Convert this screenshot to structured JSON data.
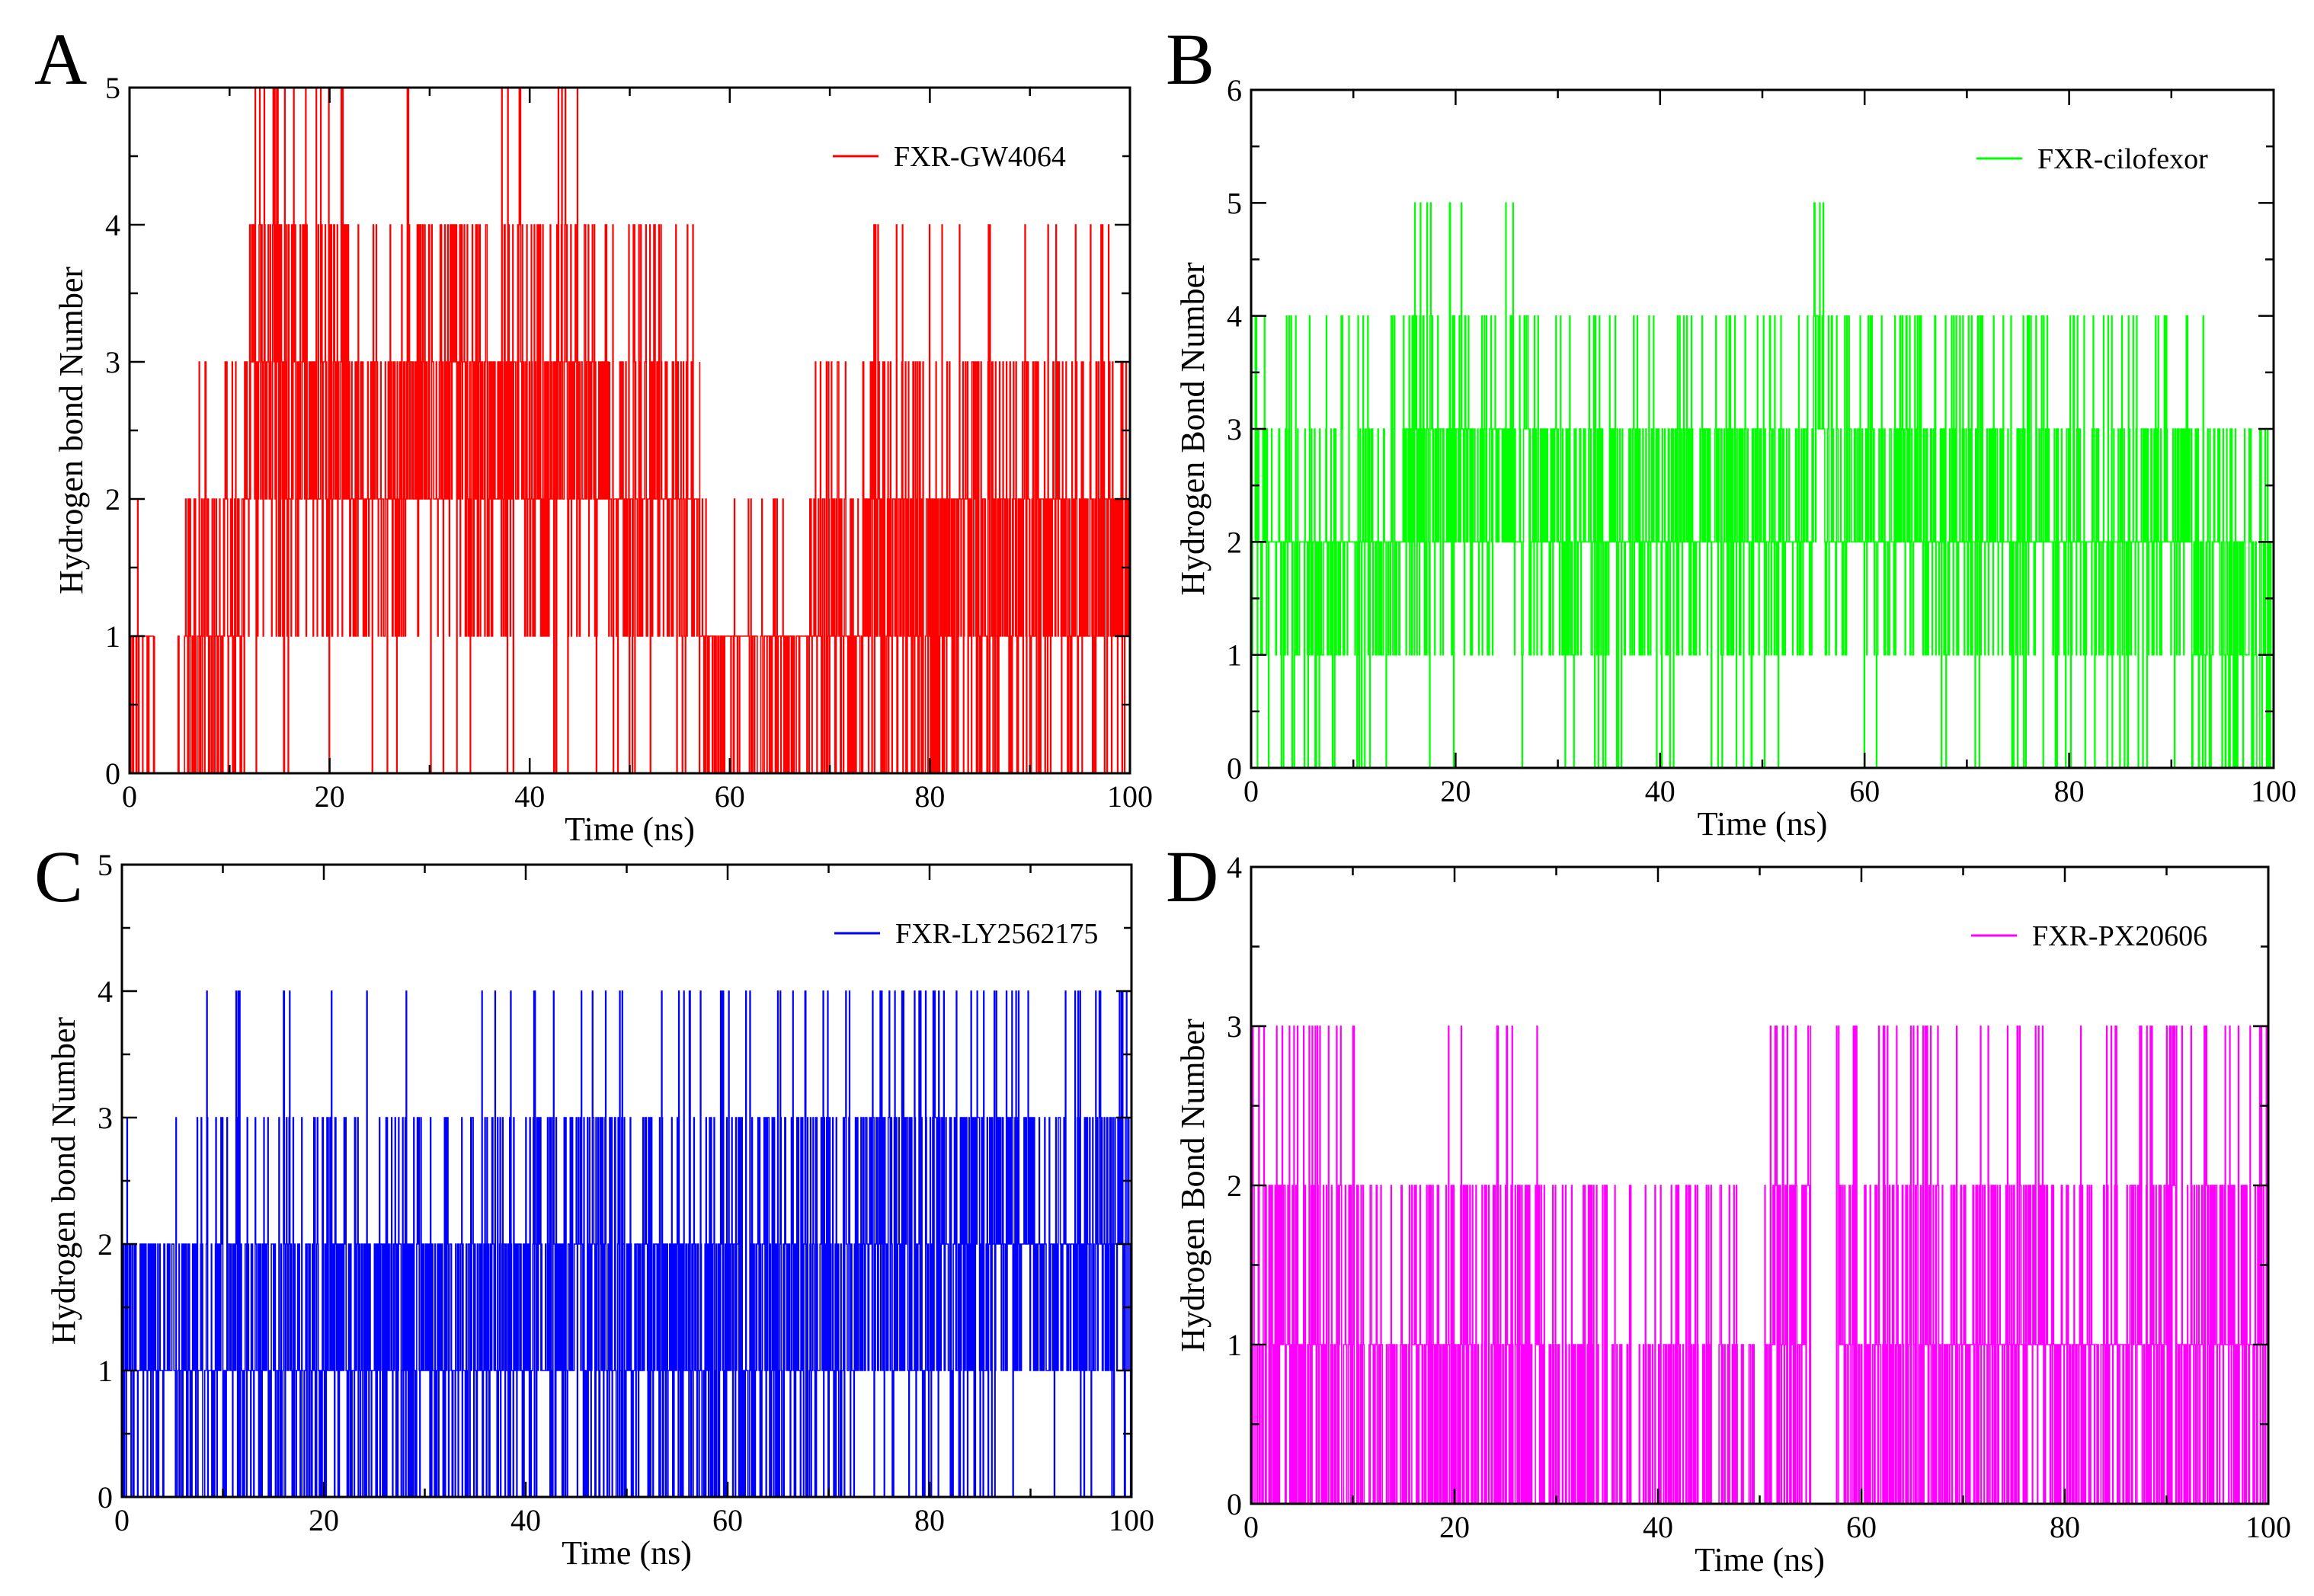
{
  "figure": {
    "panel_count": 4,
    "shared_x_label": "Time (ns)"
  },
  "chart_data": [
    {
      "panel": "A",
      "type": "line",
      "title": "",
      "xlabel": "Time (ns)",
      "ylabel": "Hydrogen bond Number",
      "xlim": [
        0,
        100
      ],
      "ylim": [
        0,
        5
      ],
      "xticks": [
        0,
        20,
        40,
        60,
        80,
        100
      ],
      "yticks": [
        0,
        1,
        2,
        3,
        4,
        5
      ],
      "legend": {
        "label": "FXR-GW4064",
        "position": "top-right"
      },
      "color": "#ff0000",
      "series": [
        {
          "name": "FXR-GW4064",
          "segments": [
            {
              "x": [
                0,
                2.5
              ],
              "base": 1,
              "p_up": 0.08,
              "p_down": 0.25,
              "maxv": 2
            },
            {
              "x": [
                2.5,
                5.5
              ],
              "base": 0,
              "p_up": 0.05,
              "p_down": 0,
              "maxv": 1
            },
            {
              "x": [
                5.5,
                10
              ],
              "base": 1,
              "p_up": 0.3,
              "p_down": 0.35,
              "maxv": 3
            },
            {
              "x": [
                10,
                12
              ],
              "base": 1,
              "p_up": 0.45,
              "p_down": 0.15,
              "maxv": 3
            },
            {
              "x": [
                12,
                22
              ],
              "base": 2.5,
              "p_up": 0.35,
              "p_down": 0.3,
              "maxv": 5
            },
            {
              "x": [
                22,
                27
              ],
              "base": 2,
              "p_up": 0.3,
              "p_down": 0.3,
              "maxv": 4
            },
            {
              "x": [
                27,
                48
              ],
              "base": 2.5,
              "p_up": 0.3,
              "p_down": 0.3,
              "maxv": 5
            },
            {
              "x": [
                48,
                57
              ],
              "base": 2,
              "p_up": 0.25,
              "p_down": 0.35,
              "maxv": 4
            },
            {
              "x": [
                57,
                68
              ],
              "base": 1,
              "p_up": 0.05,
              "p_down": 0.3,
              "maxv": 2
            },
            {
              "x": [
                68,
                74
              ],
              "base": 1,
              "p_up": 0.4,
              "p_down": 0.2,
              "maxv": 3
            },
            {
              "x": [
                74,
                90
              ],
              "base": 1.5,
              "p_up": 0.3,
              "p_down": 0.3,
              "maxv": 4
            },
            {
              "x": [
                90,
                100
              ],
              "base": 1.5,
              "p_up": 0.3,
              "p_down": 0.3,
              "maxv": 4
            }
          ]
        }
      ]
    },
    {
      "panel": "B",
      "type": "line",
      "title": "",
      "xlabel": "Time (ns)",
      "ylabel": "Hydrogen Bond Number",
      "xlim": [
        0,
        100
      ],
      "ylim": [
        0,
        6
      ],
      "xticks": [
        0,
        20,
        40,
        60,
        80,
        100
      ],
      "yticks": [
        0,
        1,
        2,
        3,
        4,
        5,
        6
      ],
      "legend": {
        "label": "FXR-cilofexor",
        "position": "top-right"
      },
      "color": "#00ff00",
      "series": [
        {
          "name": "FXR-cilofexor",
          "segments": [
            {
              "x": [
                0,
                15
              ],
              "base": 2,
              "p_up": 0.2,
              "p_down": 0.25,
              "maxv": 4
            },
            {
              "x": [
                15,
                28
              ],
              "base": 2.5,
              "p_up": 0.25,
              "p_down": 0.2,
              "maxv": 5
            },
            {
              "x": [
                28,
                55
              ],
              "base": 2,
              "p_up": 0.3,
              "p_down": 0.2,
              "maxv": 5
            },
            {
              "x": [
                55,
                56
              ],
              "base": 3,
              "p_up": 0.5,
              "p_down": 0.1,
              "maxv": 6
            },
            {
              "x": [
                56,
                92
              ],
              "base": 2,
              "p_up": 0.3,
              "p_down": 0.2,
              "maxv": 5
            },
            {
              "x": [
                92,
                100
              ],
              "base": 1.5,
              "p_up": 0.2,
              "p_down": 0.3,
              "maxv": 4
            }
          ]
        }
      ]
    },
    {
      "panel": "C",
      "type": "line",
      "title": "",
      "xlabel": "Time (ns)",
      "ylabel": "Hydrogen bond Number",
      "xlim": [
        0,
        100
      ],
      "ylim": [
        0,
        5
      ],
      "xticks": [
        0,
        20,
        40,
        60,
        80,
        100
      ],
      "yticks": [
        0,
        1,
        2,
        3,
        4,
        5
      ],
      "legend": {
        "label": "FXR-LY2562175",
        "position": "top-right"
      },
      "color": "#0000ff",
      "series": [
        {
          "name": "FXR-LY2562175",
          "segments": [
            {
              "x": [
                0,
                8
              ],
              "base": 1.5,
              "p_up": 0.05,
              "p_down": 0.4,
              "maxv": 3
            },
            {
              "x": [
                8,
                40
              ],
              "base": 1.5,
              "p_up": 0.2,
              "p_down": 0.4,
              "maxv": 4
            },
            {
              "x": [
                40,
                72
              ],
              "base": 1.5,
              "p_up": 0.3,
              "p_down": 0.35,
              "maxv": 5
            },
            {
              "x": [
                72,
                90
              ],
              "base": 2,
              "p_up": 0.35,
              "p_down": 0.35,
              "maxv": 5
            },
            {
              "x": [
                90,
                100
              ],
              "base": 2,
              "p_up": 0.3,
              "p_down": 0.35,
              "maxv": 4
            }
          ]
        }
      ]
    },
    {
      "panel": "D",
      "type": "line",
      "title": "",
      "xlabel": "Time (ns)",
      "ylabel": "Hydrogen Bond Number",
      "xlim": [
        0,
        100
      ],
      "ylim": [
        0,
        4
      ],
      "xticks": [
        0,
        20,
        40,
        60,
        80,
        100
      ],
      "yticks": [
        0,
        1,
        2,
        3,
        4
      ],
      "legend": {
        "label": "FXR-PX20606",
        "position": "top-right"
      },
      "color": "#ff00ff",
      "series": [
        {
          "name": "FXR-PX20606",
          "segments": [
            {
              "x": [
                0,
                9
              ],
              "base": 1,
              "p_up": 0.35,
              "p_down": 0.35,
              "maxv": 4
            },
            {
              "x": [
                9,
                30
              ],
              "base": 0.5,
              "p_up": 0.25,
              "p_down": 0.4,
              "maxv": 3
            },
            {
              "x": [
                30,
                51
              ],
              "base": 0.3,
              "p_up": 0.2,
              "p_down": 0.5,
              "maxv": 2
            },
            {
              "x": [
                51,
                55
              ],
              "base": 1,
              "p_up": 0.35,
              "p_down": 0.35,
              "maxv": 4
            },
            {
              "x": [
                55,
                57.5
              ],
              "base": 0,
              "p_up": 0.02,
              "p_down": 0,
              "maxv": 1
            },
            {
              "x": [
                57.5,
                66
              ],
              "base": 1,
              "p_up": 0.3,
              "p_down": 0.4,
              "maxv": 4
            },
            {
              "x": [
                66,
                100
              ],
              "base": 1.2,
              "p_up": 0.15,
              "p_down": 0.35,
              "maxv": 3
            }
          ]
        }
      ]
    }
  ]
}
